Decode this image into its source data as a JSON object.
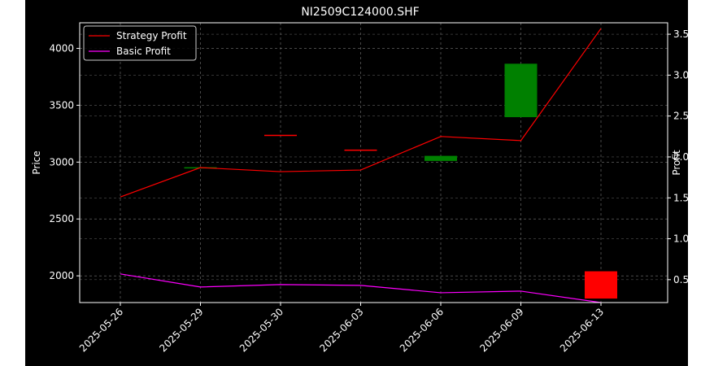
{
  "chart_data": {
    "type": "candlestick+line",
    "title": "NI2509C124000.SHF",
    "categories": [
      "2025-05-26",
      "2025-05-29",
      "2025-05-30",
      "2025-06-03",
      "2025-06-06",
      "2025-06-09",
      "2025-06-13"
    ],
    "left_axis": {
      "label": "Price",
      "ticks": [
        2000,
        2500,
        3000,
        3500,
        4000
      ],
      "range": [
        1765,
        4225
      ]
    },
    "right_axis": {
      "label": "Profit",
      "ticks": [
        0.5,
        1.0,
        1.5,
        2.0,
        2.5,
        3.0,
        3.5
      ],
      "tick_labels": [
        "0.5",
        "1.0",
        "1.5",
        "2.0",
        "2.5",
        "3.0",
        "3.5"
      ],
      "range": [
        0.22,
        3.64
      ]
    },
    "candles": [
      {
        "date": "2025-05-29",
        "open": 2950,
        "close": 2955,
        "color": "#008000"
      },
      {
        "date": "2025-05-30",
        "open": 3240,
        "close": 3240,
        "color": "#ff0000"
      },
      {
        "date": "2025-06-03",
        "open": 3110,
        "close": 3110,
        "color": "#ff0000"
      },
      {
        "date": "2025-06-06",
        "open": 3010,
        "close": 3055,
        "color": "#008000"
      },
      {
        "date": "2025-06-09",
        "open": 3395,
        "close": 3865,
        "color": "#008000"
      },
      {
        "date": "2025-06-13",
        "open": 2040,
        "close": 1800,
        "color": "#ff0000"
      }
    ],
    "series": [
      {
        "name": "Strategy Profit",
        "color": "#ff0000",
        "values": [
          1.51,
          1.87,
          1.82,
          1.84,
          2.25,
          2.2,
          3.57
        ]
      },
      {
        "name": "Basic Profit",
        "color": "#ff00ff",
        "values": [
          0.57,
          0.41,
          0.44,
          0.43,
          0.34,
          0.36,
          0.22
        ]
      }
    ],
    "grid": true,
    "legend_position": "top-left"
  }
}
